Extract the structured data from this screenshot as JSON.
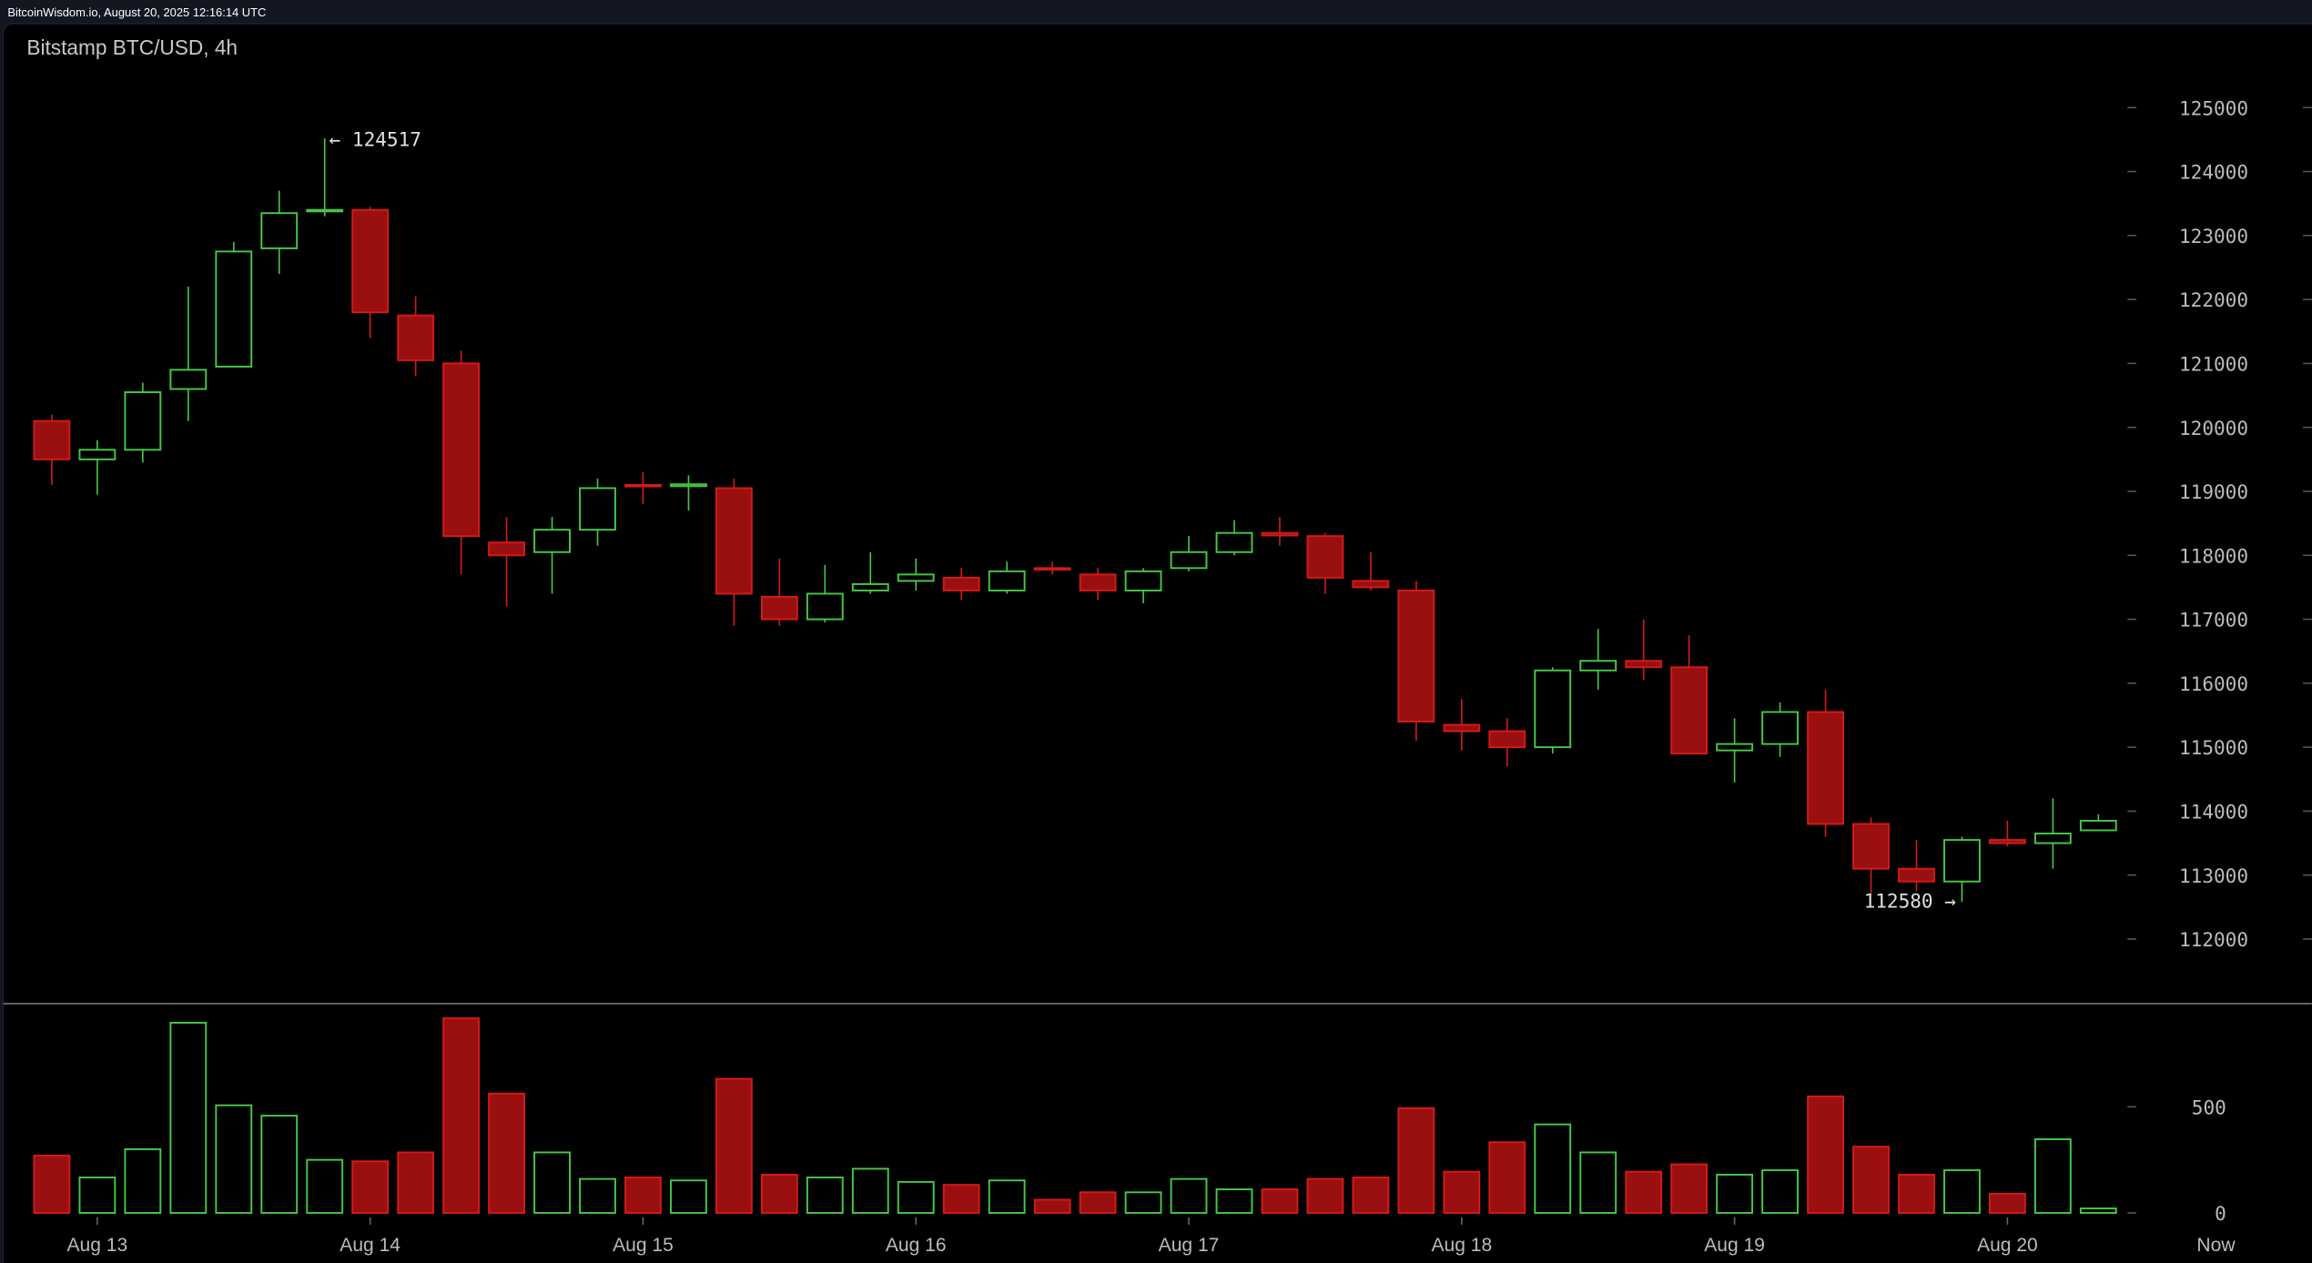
{
  "topbar": {
    "text": "BitcoinWisdom.io, August 20, 2025 12:16:14 UTC"
  },
  "colors": {
    "up": "#45c845",
    "down_fill": "#9a0f10",
    "down_stroke": "#d41a1a",
    "background": "#000000",
    "frame": "#131722",
    "text": "#c8c8c8"
  },
  "chart_data": {
    "type": "candlestick",
    "title": "Bitstamp BTC/USD, 4h",
    "price_ticks": [
      112000,
      113000,
      114000,
      115000,
      116000,
      117000,
      118000,
      119000,
      120000,
      121000,
      122000,
      123000,
      124000,
      125000
    ],
    "price_tick_labels": [
      "112000",
      "113000",
      "114000",
      "115000",
      "116000",
      "117000",
      "118000",
      "119000",
      "120000",
      "121000",
      "122000",
      "123000",
      "124000",
      "125000"
    ],
    "ylim": [
      111500,
      125800
    ],
    "volume_ticks": [
      0,
      500
    ],
    "volume_tick_labels": [
      "0",
      "500"
    ],
    "volume_ylim": [
      0,
      1000
    ],
    "x_labels": [
      {
        "label": "Aug 13",
        "candle": 1
      },
      {
        "label": "Aug 14",
        "candle": 7
      },
      {
        "label": "Aug 15",
        "candle": 13
      },
      {
        "label": "Aug 16",
        "candle": 19
      },
      {
        "label": "Aug 17",
        "candle": 25
      },
      {
        "label": "Aug 18",
        "candle": 31
      },
      {
        "label": "Aug 19",
        "candle": 37
      },
      {
        "label": "Aug 20",
        "candle": 43
      }
    ],
    "now_label": "Now",
    "annotations": {
      "high": {
        "label": "← 124517",
        "value": 124517,
        "candle": 6
      },
      "low": {
        "label": "112580 →",
        "value": 112580,
        "candle": 42
      }
    },
    "candles": [
      [
        120100,
        120200,
        119100,
        119500,
        270
      ],
      [
        119500,
        119800,
        118950,
        119650,
        167
      ],
      [
        119650,
        120700,
        119450,
        120550,
        300
      ],
      [
        120600,
        122200,
        120100,
        120900,
        896
      ],
      [
        120950,
        122900,
        120950,
        122750,
        507
      ],
      [
        122800,
        123700,
        122400,
        123350,
        458
      ],
      [
        123380,
        124517,
        123300,
        123400,
        250
      ],
      [
        123400,
        123450,
        121400,
        121800,
        243
      ],
      [
        121750,
        122050,
        120800,
        121050,
        285
      ],
      [
        121000,
        121200,
        117700,
        118300,
        917
      ],
      [
        118200,
        118600,
        117200,
        118000,
        562
      ],
      [
        118050,
        118600,
        117400,
        118400,
        285
      ],
      [
        118400,
        119200,
        118150,
        119050,
        160
      ],
      [
        119100,
        119300,
        118800,
        119080,
        167
      ],
      [
        119080,
        119250,
        118700,
        119110,
        153
      ],
      [
        119050,
        119200,
        116900,
        117400,
        632
      ],
      [
        117350,
        117950,
        116900,
        117000,
        180
      ],
      [
        117000,
        117850,
        116950,
        117400,
        167
      ],
      [
        117450,
        118050,
        117400,
        117550,
        208
      ],
      [
        117600,
        117950,
        117450,
        117700,
        146
      ],
      [
        117650,
        117800,
        117300,
        117450,
        132
      ],
      [
        117450,
        117900,
        117400,
        117750,
        153
      ],
      [
        117800,
        117900,
        117700,
        117780,
        62
      ],
      [
        117700,
        117800,
        117300,
        117450,
        97
      ],
      [
        117450,
        117800,
        117250,
        117750,
        97
      ],
      [
        117800,
        118300,
        117750,
        118050,
        160
      ],
      [
        118050,
        118550,
        118000,
        118350,
        111
      ],
      [
        118350,
        118600,
        118150,
        118310,
        111
      ],
      [
        118300,
        118350,
        117400,
        117650,
        160
      ],
      [
        117600,
        118050,
        117450,
        117500,
        167
      ],
      [
        117450,
        117600,
        115100,
        115400,
        493
      ],
      [
        115350,
        115750,
        114950,
        115250,
        194
      ],
      [
        115250,
        115450,
        114700,
        115000,
        333
      ],
      [
        115000,
        116250,
        114900,
        116200,
        417
      ],
      [
        116200,
        116850,
        115900,
        116350,
        285
      ],
      [
        116350,
        117000,
        116050,
        116250,
        194
      ],
      [
        116250,
        116750,
        114900,
        114900,
        229
      ],
      [
        114950,
        115450,
        114450,
        115050,
        180
      ],
      [
        115050,
        115700,
        114850,
        115550,
        201
      ],
      [
        115550,
        115900,
        113600,
        113800,
        549
      ],
      [
        113800,
        113900,
        112700,
        113100,
        312
      ],
      [
        113100,
        113550,
        112750,
        112900,
        180
      ],
      [
        112900,
        113600,
        112580,
        113550,
        201
      ],
      [
        113550,
        113850,
        113450,
        113500,
        90
      ],
      [
        113500,
        114200,
        113100,
        113650,
        347
      ],
      [
        113700,
        113950,
        113700,
        113850,
        21
      ]
    ],
    "candle_fields": [
      "open",
      "high",
      "low",
      "close",
      "volume"
    ]
  }
}
